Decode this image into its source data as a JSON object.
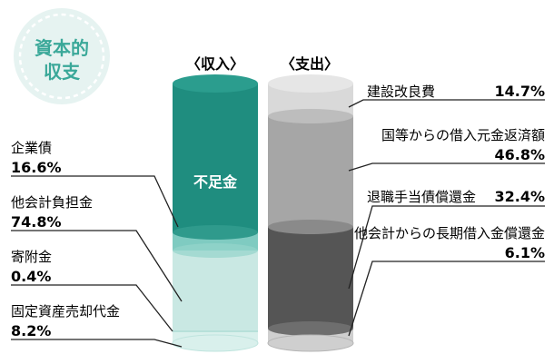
{
  "badge": {
    "line1": "資本的",
    "line2": "収支",
    "color": "#e6f3f1",
    "border": "#ffffff",
    "text_color": "#3aa899"
  },
  "colors": {
    "teal_dark": "#1f8d7f",
    "teal_mid": "#6cc2b8",
    "teal_light": "#cdeae6",
    "teal_pale": "#dff2ef",
    "gray_light": "#dcdcdc",
    "gray_mid": "#a8a8a8",
    "gray_dark": "#5b5b5b",
    "gray_pale": "#d3d3d3",
    "leader": "#222222"
  },
  "chart_data": {
    "type": "stacked_bar",
    "bars": [
      {
        "name": "〈収入〉",
        "segments": [
          {
            "label": "不足金",
            "value": null,
            "inside_label": true,
            "color": "#1f8d7f"
          },
          {
            "label": "企業債",
            "value": 16.6,
            "value_text": "16.6%",
            "color": "#7fcbc1"
          },
          {
            "label": "他会計負担金",
            "value": 74.8,
            "value_text": "74.8%",
            "color": "#c9e8e3"
          },
          {
            "label": "寄附金",
            "value": 0.4,
            "value_text": "0.4%",
            "color": "#b7e0da"
          },
          {
            "label": "固定資産売却代金",
            "value": 8.2,
            "value_text": "8.2%",
            "color": "#d9f0ec"
          }
        ]
      },
      {
        "name": "〈支出〉",
        "segments": [
          {
            "label": "建設改良費",
            "value": 14.7,
            "value_text": "14.7%",
            "color": "#d9d9d9"
          },
          {
            "label": "国等からの借入元金返済額",
            "value": 46.8,
            "value_text": "46.8%",
            "color": "#a6a6a6"
          },
          {
            "label": "退職手当債償還金",
            "value": 32.4,
            "value_text": "32.4%",
            "color": "#555555"
          },
          {
            "label": "他会計からの長期借入金償還金",
            "value": 6.1,
            "value_text": "6.1%",
            "color": "#cfcfcf"
          }
        ]
      }
    ]
  }
}
